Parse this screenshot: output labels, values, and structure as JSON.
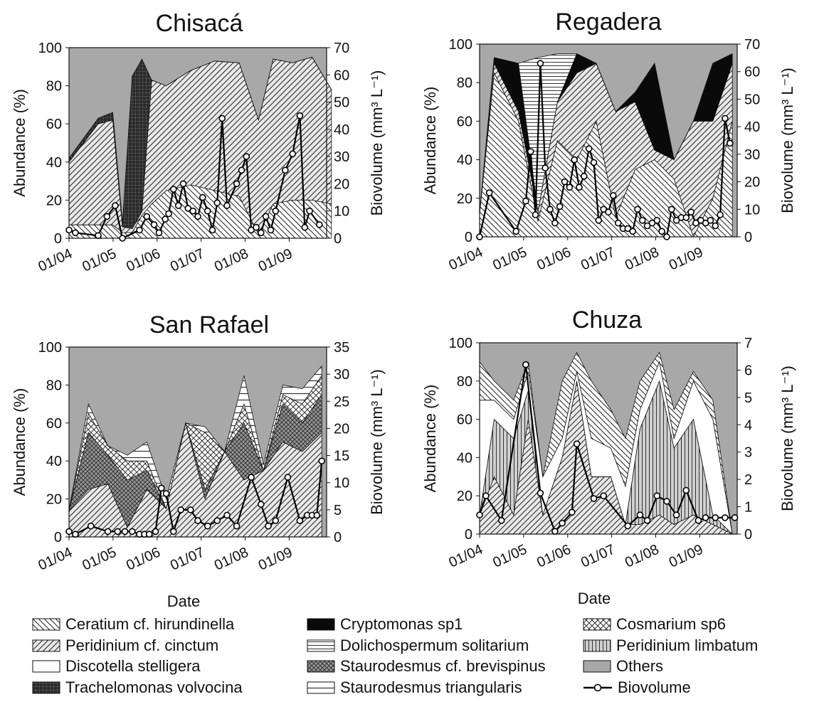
{
  "figure": {
    "date_label": "Date",
    "y_left_label": "Abundance (%)",
    "y_right_label": "Biovolume (mm³ L⁻¹)",
    "x_ticks": [
      "01/04",
      "01/05",
      "01/06",
      "01/07",
      "01/08",
      "01/09"
    ],
    "abundance_ticks": [
      "100",
      "80",
      "60",
      "40",
      "20",
      "0"
    ]
  },
  "legend": [
    {
      "label": "Ceratium cf. hirundinella",
      "pattern": "pat-diag-left",
      "color": "#ffffff"
    },
    {
      "label": "Cryptomonas sp1",
      "pattern": "solid",
      "color": "#0a0a0a"
    },
    {
      "label": "Cosmarium sp6",
      "pattern": "pat-cross",
      "color": "#ffffff"
    },
    {
      "label": "Peridinium cf. cinctum",
      "pattern": "pat-diag-right",
      "color": "#e6e6e6"
    },
    {
      "label": "Dolichospermum solitarium",
      "pattern": "pat-hlines",
      "color": "#ffffff"
    },
    {
      "label": "Peridinium limbatum",
      "pattern": "pat-vlines",
      "color": "#d0d0d0"
    },
    {
      "label": "Discotella stelligera",
      "pattern": "solid",
      "color": "#ffffff"
    },
    {
      "label": "Staurodesmus cf. brevispinus",
      "pattern": "pat-cross-dark",
      "color": "#a0a0a0"
    },
    {
      "label": "Others",
      "pattern": "solid",
      "color": "#a8a8a8"
    },
    {
      "label": "Trachelomonas volvocina",
      "pattern": "pat-grid-dark",
      "color": "#333333"
    },
    {
      "label": "Staurodesmus triangularis",
      "pattern": "pat-hlines-wide",
      "color": "#ffffff"
    },
    {
      "label": "Biovolume",
      "pattern": "line",
      "color": "#000000"
    }
  ],
  "chart_data": [
    {
      "type": "area",
      "title": "Chisacá",
      "xlabel": "",
      "ylabel": "Abundance (%)",
      "y2label": "Biovolume (mm³ L⁻¹)",
      "ylim": [
        0,
        100
      ],
      "y2lim": [
        0,
        70
      ],
      "y2_ticks": [
        "70",
        "60",
        "50",
        "40",
        "30",
        "20",
        "10",
        "0"
      ],
      "x_ticks": [
        "01/04",
        "01/05",
        "01/06",
        "01/07",
        "01/08",
        "01/09"
      ],
      "series": [
        {
          "name": "Ceratium cf. hirundinella",
          "x": [
            0.0,
            0.6,
            0.9,
            1.1,
            1.3,
            1.5,
            1.7,
            2.0,
            2.5,
            3.0,
            3.5,
            3.9,
            4.2,
            4.6,
            5.0,
            5.4
          ],
          "values": [
            7,
            7,
            7,
            3,
            3,
            12,
            18,
            25,
            28,
            25,
            22,
            2,
            18,
            20,
            20,
            18
          ]
        },
        {
          "name": "Peridinium cf. cinctum",
          "x": [
            0.0,
            0.6,
            0.9,
            1.1,
            1.3,
            1.5,
            1.7,
            2.0,
            2.5,
            3.0,
            3.5,
            3.9,
            4.2,
            4.6,
            5.0,
            5.4
          ],
          "values": [
            33,
            53,
            55,
            3,
            2,
            2,
            65,
            55,
            60,
            68,
            70,
            60,
            76,
            72,
            75,
            60
          ]
        },
        {
          "name": "Trachelomonas volvocina",
          "x": [
            0.0,
            0.6,
            0.9,
            1.1,
            1.3,
            1.5,
            1.7,
            2.0,
            2.5,
            3.0,
            3.5,
            3.9,
            4.2,
            4.6,
            5.0,
            5.4
          ],
          "values": [
            2,
            3,
            4,
            2,
            80,
            80,
            0,
            0,
            0,
            0,
            0,
            0,
            0,
            0,
            0,
            0
          ]
        },
        {
          "name": "Others",
          "x": [
            0.0,
            5.4
          ],
          "values": [
            100,
            100
          ]
        }
      ],
      "biovolume": {
        "x": [
          0.0,
          0.13,
          0.6,
          0.78,
          0.95,
          1.1,
          1.45,
          1.6,
          1.75,
          1.85,
          1.98,
          2.05,
          2.15,
          2.25,
          2.35,
          2.45,
          2.55,
          2.65,
          2.75,
          2.85,
          2.95,
          3.05,
          3.15,
          3.25,
          3.45,
          3.55,
          3.65,
          3.75,
          3.85,
          3.95,
          4.05,
          4.15,
          4.25,
          4.45,
          4.6,
          4.75,
          4.85,
          4.95,
          5.15
        ],
        "values": [
          3,
          2,
          1,
          8,
          12,
          0,
          3,
          8,
          5,
          2,
          7,
          9,
          18,
          12,
          20,
          11,
          10,
          8,
          15,
          10,
          3,
          13,
          44,
          12,
          20,
          25,
          30,
          3,
          4,
          2,
          8,
          3,
          10,
          25,
          31,
          45,
          4,
          10,
          5
        ]
      }
    },
    {
      "type": "area",
      "title": "Regadera",
      "xlabel": "",
      "ylabel": "Abundance (%)",
      "y2label": "Biovolume (mm³ L⁻¹)",
      "ylim": [
        0,
        100
      ],
      "y2lim": [
        0,
        70
      ],
      "y2_ticks": [
        "70",
        "60",
        "50",
        "40",
        "30",
        "20",
        "10",
        "0"
      ],
      "x_ticks": [
        "01/04",
        "01/05",
        "01/06",
        "01/07",
        "01/08",
        "01/09"
      ],
      "series": [
        {
          "name": "Ceratium cf. hirundinella",
          "x": [
            0.0,
            0.3,
            0.8,
            1.2,
            1.6,
            2.0,
            2.4,
            2.8,
            3.2,
            3.6,
            4.0,
            4.4,
            4.8,
            5.2
          ],
          "values": [
            12,
            85,
            60,
            8,
            50,
            40,
            60,
            10,
            35,
            40,
            30,
            0,
            20,
            60
          ]
        },
        {
          "name": "Peridinium cf. cinctum",
          "x": [
            0.0,
            0.3,
            0.8,
            1.2,
            1.6,
            2.0,
            2.4,
            2.8,
            3.2,
            3.6,
            4.0,
            4.4,
            4.8,
            5.2
          ],
          "values": [
            0,
            5,
            5,
            5,
            20,
            45,
            30,
            55,
            35,
            5,
            10,
            60,
            40,
            30
          ]
        },
        {
          "name": "Cryptomonas sp1",
          "x": [
            0.0,
            0.3,
            0.8,
            1.2,
            1.6,
            2.0,
            2.4,
            2.8,
            3.2,
            3.6,
            4.0,
            4.4,
            4.8,
            5.2
          ],
          "values": [
            0,
            3,
            25,
            0,
            0,
            10,
            0,
            0,
            5,
            45,
            0,
            0,
            30,
            5
          ]
        },
        {
          "name": "Dolichospermum solitarium",
          "x": [
            0.0,
            0.3,
            0.8,
            1.2,
            1.6,
            2.0,
            2.4,
            2.8,
            3.2,
            3.6,
            4.0,
            4.4,
            4.8,
            5.2
          ],
          "values": [
            0,
            0,
            0,
            80,
            25,
            0,
            0,
            0,
            0,
            0,
            0,
            0,
            0,
            0
          ]
        },
        {
          "name": "Others",
          "x": [
            0.0,
            5.2
          ],
          "values": [
            100,
            100
          ]
        }
      ],
      "biovolume": {
        "x": [
          0.0,
          0.2,
          0.75,
          0.95,
          1.05,
          1.15,
          1.25,
          1.35,
          1.45,
          1.55,
          1.65,
          1.75,
          1.85,
          1.95,
          2.05,
          2.15,
          2.25,
          2.35,
          2.45,
          2.55,
          2.65,
          2.75,
          2.85,
          2.95,
          3.05,
          3.15,
          3.25,
          3.35,
          3.45,
          3.55,
          3.65,
          3.75,
          3.85,
          3.95,
          4.05,
          4.15,
          4.25,
          4.35,
          4.45,
          4.55,
          4.65,
          4.75,
          4.85,
          4.95,
          5.05,
          5.15
        ],
        "values": [
          0,
          16,
          2,
          13,
          31,
          8,
          63,
          25,
          10,
          5,
          11,
          20,
          18,
          28,
          18,
          22,
          32,
          27,
          6,
          10,
          9,
          15,
          5,
          3,
          3,
          2,
          10,
          6,
          4,
          5,
          6,
          2,
          0,
          10,
          6,
          7,
          7,
          9,
          5,
          6,
          5,
          6,
          4,
          8,
          43,
          34
        ]
      }
    },
    {
      "type": "area",
      "title": "San Rafael",
      "xlabel": "Date",
      "ylabel": "Abundance (%)",
      "y2label": "Biovolume (mm³ L⁻¹)",
      "ylim": [
        0,
        100
      ],
      "y2lim": [
        0,
        35
      ],
      "y2_ticks": [
        "35",
        "30",
        "25",
        "20",
        "15",
        "10",
        "5",
        "0"
      ],
      "x_ticks": [
        "01/04",
        "01/05",
        "01/06",
        "01/07",
        "01/08",
        "01/09"
      ],
      "series": [
        {
          "name": "Peridinium cf. cinctum",
          "x": [
            0.0,
            0.4,
            0.8,
            1.2,
            1.6,
            2.0,
            2.4,
            2.8,
            3.2,
            3.6,
            4.0,
            4.4,
            4.8,
            5.2
          ],
          "values": [
            14,
            25,
            28,
            5,
            25,
            15,
            60,
            20,
            45,
            30,
            35,
            50,
            45,
            55
          ]
        },
        {
          "name": "Staurodesmus cf. brevispinus",
          "x": [
            0.0,
            0.4,
            0.8,
            1.2,
            1.6,
            2.0,
            2.4,
            2.8,
            3.2,
            3.6,
            4.0,
            4.4,
            4.8,
            5.2
          ],
          "values": [
            0,
            30,
            15,
            25,
            10,
            0,
            0,
            5,
            0,
            30,
            0,
            20,
            15,
            20
          ]
        },
        {
          "name": "Cosmarium sp6",
          "x": [
            0.0,
            0.4,
            0.8,
            1.2,
            1.6,
            2.0,
            2.4,
            2.8,
            3.2,
            3.6,
            4.0,
            4.4,
            4.8,
            5.2
          ],
          "values": [
            0,
            10,
            5,
            10,
            5,
            0,
            0,
            30,
            0,
            10,
            0,
            5,
            10,
            10
          ]
        },
        {
          "name": "Staurodesmus triangularis",
          "x": [
            0.0,
            0.4,
            0.8,
            1.2,
            1.6,
            2.0,
            2.4,
            2.8,
            3.2,
            3.6,
            4.0,
            4.4,
            4.8,
            5.2
          ],
          "values": [
            0,
            5,
            0,
            3,
            10,
            5,
            0,
            3,
            0,
            15,
            3,
            5,
            8,
            5
          ]
        },
        {
          "name": "Others",
          "x": [
            0.0,
            5.2
          ],
          "values": [
            100,
            100
          ]
        }
      ],
      "biovolume": {
        "x": [
          0.0,
          0.13,
          0.45,
          0.8,
          1.0,
          1.15,
          1.3,
          1.45,
          1.55,
          1.65,
          1.78,
          1.9,
          2.0,
          2.15,
          2.3,
          2.5,
          2.65,
          2.85,
          3.05,
          3.25,
          3.45,
          3.75,
          3.95,
          4.1,
          4.25,
          4.5,
          4.75,
          4.9,
          5.0,
          5.1,
          5.2
        ],
        "values": [
          1,
          0.5,
          2,
          1,
          1,
          1,
          1,
          0.5,
          0.5,
          0.5,
          1,
          9,
          8,
          1,
          5,
          5,
          3,
          2,
          3,
          4,
          2,
          11,
          6,
          2,
          3,
          11,
          3,
          4,
          4,
          4,
          14
        ]
      }
    },
    {
      "type": "area",
      "title": "Chuza",
      "xlabel": "Date",
      "ylabel": "Abundance (%)",
      "y2label": "Biovolume (mm³ L⁻¹)",
      "ylim": [
        0,
        100
      ],
      "y2lim": [
        0,
        7
      ],
      "y2_ticks": [
        "7",
        "6",
        "5",
        "4",
        "3",
        "2",
        "1",
        "0"
      ],
      "x_ticks": [
        "01/04",
        "01/05",
        "01/06",
        "01/07",
        "01/08",
        "01/09"
      ],
      "series": [
        {
          "name": "Peridinium cf. cinctum",
          "x": [
            0.0,
            0.3,
            0.7,
            1.0,
            1.3,
            1.7,
            2.0,
            2.3,
            2.7,
            3.0,
            3.3,
            3.7,
            4.0,
            4.4,
            4.8,
            5.2
          ],
          "values": [
            10,
            30,
            10,
            60,
            10,
            40,
            80,
            30,
            30,
            5,
            5,
            10,
            5,
            10,
            5,
            0
          ]
        },
        {
          "name": "Peridinium limbatum",
          "x": [
            0.0,
            0.3,
            0.7,
            1.0,
            1.3,
            1.7,
            2.0,
            2.3,
            2.7,
            3.0,
            3.3,
            3.7,
            4.0,
            4.4,
            4.8,
            5.2
          ],
          "values": [
            0,
            30,
            40,
            15,
            0,
            0,
            0,
            0,
            0,
            0,
            50,
            70,
            40,
            50,
            5,
            0
          ]
        },
        {
          "name": "Discotella stelligera",
          "x": [
            0.0,
            0.3,
            0.7,
            1.0,
            1.3,
            1.7,
            2.0,
            2.3,
            2.7,
            3.0,
            3.3,
            3.7,
            4.0,
            4.4,
            4.8,
            5.2
          ],
          "values": [
            60,
            10,
            10,
            10,
            20,
            10,
            5,
            20,
            15,
            20,
            10,
            10,
            5,
            20,
            50,
            0
          ]
        },
        {
          "name": "Ceratium cf. hirundinella",
          "x": [
            0.0,
            0.3,
            0.7,
            1.0,
            1.3,
            1.7,
            2.0,
            2.3,
            2.7,
            3.0,
            3.3,
            3.7,
            4.0,
            4.4,
            4.8,
            5.2
          ],
          "values": [
            20,
            10,
            10,
            5,
            0,
            30,
            10,
            30,
            20,
            25,
            15,
            5,
            15,
            5,
            10,
            0
          ]
        },
        {
          "name": "Others",
          "x": [
            0.0,
            5.2
          ],
          "values": [
            100,
            100
          ]
        }
      ],
      "biovolume": {
        "x": [
          0.0,
          0.13,
          0.45,
          0.95,
          1.25,
          1.55,
          1.7,
          1.9,
          2.0,
          2.35,
          2.55,
          3.05,
          3.3,
          3.45,
          3.65,
          3.85,
          4.05,
          4.25,
          4.5,
          4.65,
          4.85,
          5.05,
          5.25
        ],
        "values": [
          0.7,
          1.4,
          0.5,
          6.2,
          1.5,
          0.1,
          0.4,
          0.8,
          3.3,
          1.3,
          1.4,
          0.3,
          0.7,
          0.5,
          1.4,
          1.2,
          0.7,
          1.6,
          0.5,
          0.6,
          0.6,
          0.6,
          0.6
        ]
      }
    }
  ]
}
